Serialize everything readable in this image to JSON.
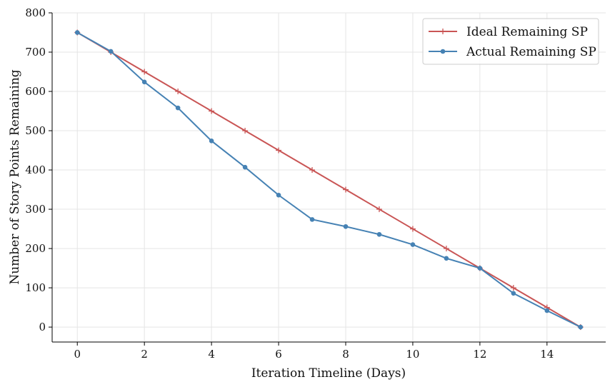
{
  "chart_data": {
    "type": "line",
    "title": "",
    "xlabel": "Iteration Timeline (Days)",
    "ylabel": "Number of Story Points Remaining",
    "xlim": [
      -0.75,
      15.75
    ],
    "ylim": [
      -38,
      800
    ],
    "xticks": [
      0,
      2,
      4,
      6,
      8,
      10,
      12,
      14
    ],
    "yticks": [
      0,
      100,
      200,
      300,
      400,
      500,
      600,
      700,
      800
    ],
    "grid": true,
    "legend_position": "top-right",
    "x": [
      0,
      1,
      2,
      3,
      4,
      5,
      6,
      7,
      8,
      9,
      10,
      11,
      12,
      13,
      14,
      15
    ],
    "series": [
      {
        "name": "Ideal Remaining SP",
        "color": "#c95555",
        "marker": "plus",
        "values": [
          750,
          700,
          650,
          600,
          550,
          500,
          450,
          400,
          350,
          300,
          250,
          200,
          150,
          100,
          50,
          0
        ]
      },
      {
        "name": "Actual Remaining SP",
        "color": "#4682b4",
        "marker": "circle",
        "values": [
          750,
          702,
          624,
          558,
          474,
          407,
          336,
          274,
          256,
          236,
          210,
          175,
          150,
          86,
          42,
          0
        ]
      }
    ]
  }
}
